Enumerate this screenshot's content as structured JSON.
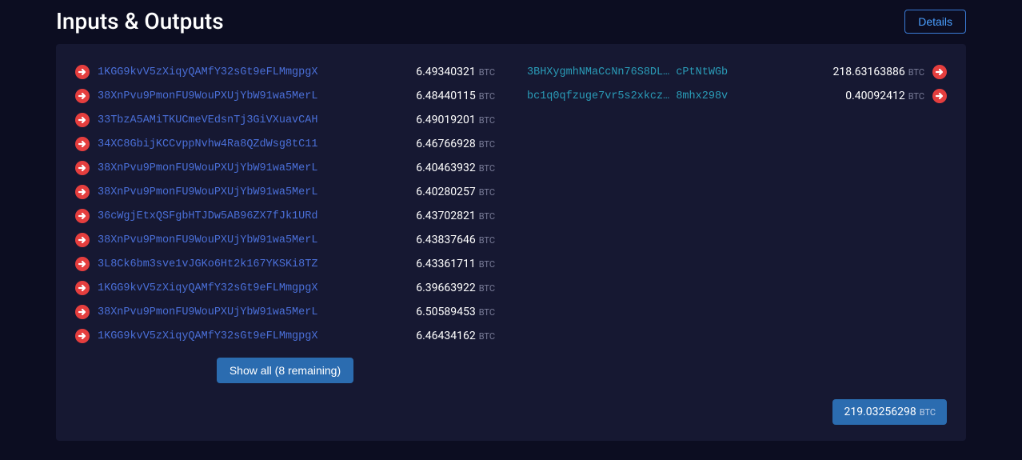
{
  "colors": {
    "page_bg": "#0c0d21",
    "panel_bg": "#161832",
    "input_link": "#4a6fd8",
    "output_link": "#2a9cb8",
    "icon_fill": "#e53e3e",
    "icon_arrow": "#ffffff",
    "btn_primary_bg": "#2b6cb0",
    "btn_outline_border": "#3a7bd5",
    "currency_text": "#7a7d99"
  },
  "header": {
    "title": "Inputs & Outputs",
    "details_label": "Details"
  },
  "currency": "BTC",
  "inputs": [
    {
      "address": "1KGG9kvV5zXiqyQAMfY32sGt9eFLMmgpgX",
      "amount": "6.49340321"
    },
    {
      "address": "38XnPvu9PmonFU9WouPXUjYbW91wa5MerL",
      "amount": "6.48440115"
    },
    {
      "address": "33TbzA5AMiTKUCmeVEdsnTj3GiVXuavCAH",
      "amount": "6.49019201"
    },
    {
      "address": "34XC8GbijKCCvppNvhw4Ra8QZdWsg8tC11",
      "amount": "6.46766928"
    },
    {
      "address": "38XnPvu9PmonFU9WouPXUjYbW91wa5MerL",
      "amount": "6.40463932"
    },
    {
      "address": "38XnPvu9PmonFU9WouPXUjYbW91wa5MerL",
      "amount": "6.40280257"
    },
    {
      "address": "36cWgjEtxQSFgbHTJDw5AB96ZX7fJk1URd",
      "amount": "6.43702821"
    },
    {
      "address": "38XnPvu9PmonFU9WouPXUjYbW91wa5MerL",
      "amount": "6.43837646"
    },
    {
      "address": "3L8Ck6bm3sve1vJGKo6Ht2k167YKSKi8TZ",
      "amount": "6.43361711"
    },
    {
      "address": "1KGG9kvV5zXiqyQAMfY32sGt9eFLMmgpgX",
      "amount": "6.39663922"
    },
    {
      "address": "38XnPvu9PmonFU9WouPXUjYbW91wa5MerL",
      "amount": "6.50589453"
    },
    {
      "address": "1KGG9kvV5zXiqyQAMfY32sGt9eFLMmgpgX",
      "amount": "6.46434162"
    }
  ],
  "outputs": [
    {
      "address": "3BHXygmhNMaCcNn76S8DL… cPtNtWGb",
      "amount": "218.63163886"
    },
    {
      "address": "bc1q0qfzuge7vr5s2xkcz… 8mhx298v",
      "amount": "0.40092412"
    }
  ],
  "show_all": {
    "label": "Show all (8 remaining)"
  },
  "total": {
    "amount": "219.03256298"
  }
}
